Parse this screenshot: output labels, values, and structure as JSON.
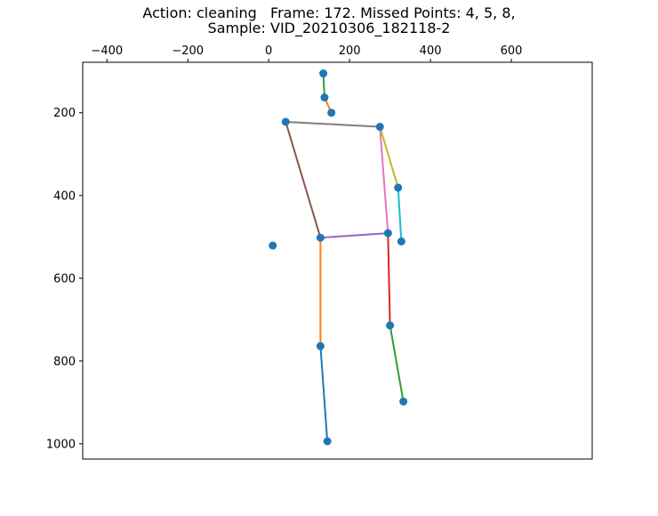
{
  "chart_data": {
    "type": "scatter",
    "title_lines": [
      "Action: cleaning   Frame: 172. Missed Points: 4, 5, 8,",
      "Sample: VID_20210306_182118-2"
    ],
    "x_axis": {
      "position": "top",
      "xlim": [
        -460,
        800
      ],
      "ticks": [
        -400,
        -200,
        0,
        200,
        400,
        600
      ]
    },
    "y_axis": {
      "position": "left",
      "inverted": true,
      "ylim": [
        1037,
        78
      ],
      "ticks": [
        200,
        400,
        600,
        800,
        1000
      ]
    },
    "grid": false,
    "legend": "none",
    "points": [
      {
        "x": 135,
        "y": 105
      },
      {
        "x": 138,
        "y": 163
      },
      {
        "x": 155,
        "y": 200
      },
      {
        "x": 42,
        "y": 222
      },
      {
        "x": 275,
        "y": 234
      },
      {
        "x": 320,
        "y": 381
      },
      {
        "x": 328,
        "y": 511
      },
      {
        "x": 10,
        "y": 521
      },
      {
        "x": 128,
        "y": 502
      },
      {
        "x": 295,
        "y": 491
      },
      {
        "x": 300,
        "y": 714
      },
      {
        "x": 128,
        "y": 764
      },
      {
        "x": 333,
        "y": 898
      },
      {
        "x": 145,
        "y": 994
      }
    ],
    "marker_color": "#1f77b4",
    "segments": [
      {
        "from": [
          135,
          105
        ],
        "to": [
          138,
          163
        ],
        "color": "#2ca02c"
      },
      {
        "from": [
          138,
          163
        ],
        "to": [
          155,
          200
        ],
        "color": "#ff7f0e"
      },
      {
        "from": [
          42,
          222
        ],
        "to": [
          275,
          234
        ],
        "color": "#7f7f7f"
      },
      {
        "from": [
          275,
          234
        ],
        "to": [
          320,
          381
        ],
        "color": "#bcbd22"
      },
      {
        "from": [
          320,
          381
        ],
        "to": [
          328,
          511
        ],
        "color": "#17becf"
      },
      {
        "from": [
          42,
          222
        ],
        "to": [
          128,
          502
        ],
        "color": "#8c564b"
      },
      {
        "from": [
          275,
          234
        ],
        "to": [
          295,
          491
        ],
        "color": "#e377c2"
      },
      {
        "from": [
          128,
          502
        ],
        "to": [
          295,
          491
        ],
        "color": "#9467bd"
      },
      {
        "from": [
          295,
          491
        ],
        "to": [
          300,
          714
        ],
        "color": "#d62728"
      },
      {
        "from": [
          300,
          714
        ],
        "to": [
          333,
          898
        ],
        "color": "#2ca02c"
      },
      {
        "from": [
          128,
          502
        ],
        "to": [
          128,
          764
        ],
        "color": "#ff7f0e"
      },
      {
        "from": [
          128,
          764
        ],
        "to": [
          145,
          994
        ],
        "color": "#1f77b4"
      }
    ]
  }
}
